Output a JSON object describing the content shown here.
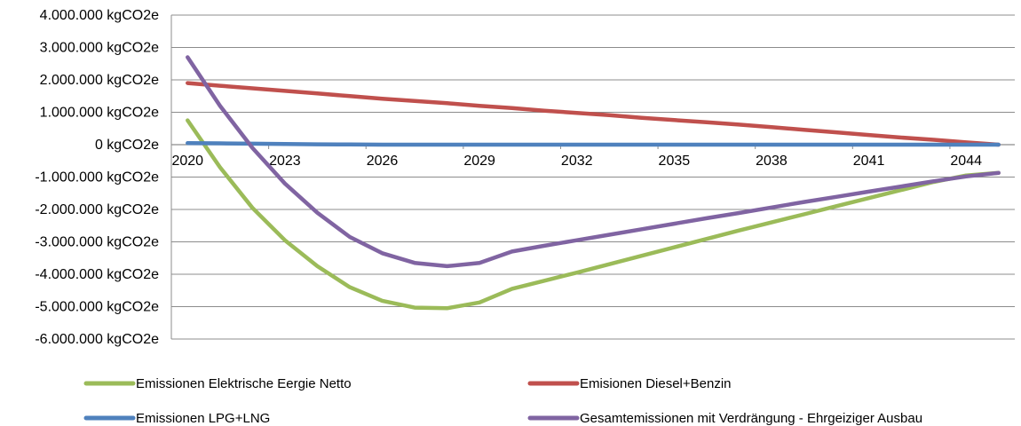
{
  "chart_data": {
    "type": "line",
    "title": "",
    "xlabel": "",
    "ylabel": "",
    "ylim": [
      -6000000,
      4000000
    ],
    "ytick_values": [
      4000000,
      3000000,
      2000000,
      1000000,
      0,
      -1000000,
      -2000000,
      -3000000,
      -4000000,
      -5000000,
      -6000000
    ],
    "ytick_labels": [
      "4.000.000 kgCO2e",
      "3.000.000 kgCO2e",
      "2.000.000 kgCO2e",
      "1.000.000 kgCO2e",
      "0 kgCO2e",
      "-1.000.000 kgCO2e",
      "-2.000.000 kgCO2e",
      "-3.000.000 kgCO2e",
      "-4.000.000 kgCO2e",
      "-5.000.000 kgCO2e",
      "-6.000.000 kgCO2e"
    ],
    "xtick_labels": [
      "2020",
      "2023",
      "2026",
      "2029",
      "2032",
      "2035",
      "2038",
      "2041",
      "2044"
    ],
    "grid": true,
    "legend_position": "bottom",
    "x": [
      2020,
      2021,
      2022,
      2023,
      2024,
      2025,
      2026,
      2027,
      2028,
      2029,
      2030,
      2031,
      2032,
      2033,
      2034,
      2035,
      2036,
      2037,
      2038,
      2039,
      2040,
      2041,
      2042,
      2043,
      2044,
      2045
    ],
    "series": [
      {
        "name": "Emissionen Elektrische Eergie Netto",
        "color": "#9bbb59",
        "values": [
          750000,
          -700000,
          -1950000,
          -2950000,
          -3750000,
          -4400000,
          -4820000,
          -5030000,
          -5050000,
          -4870000,
          -4450000,
          -4200000,
          -3950000,
          -3690000,
          -3430000,
          -3170000,
          -2910000,
          -2650000,
          -2400000,
          -2150000,
          -1900000,
          -1650000,
          -1400000,
          -1150000,
          -950000,
          -870000
        ]
      },
      {
        "name": "Emisionen Diesel+Benzin",
        "color": "#c0504d",
        "values": [
          1900000,
          1820000,
          1740000,
          1660000,
          1580000,
          1500000,
          1420000,
          1350000,
          1280000,
          1200000,
          1130000,
          1050000,
          980000,
          910000,
          830000,
          760000,
          690000,
          620000,
          540000,
          460000,
          380000,
          300000,
          220000,
          150000,
          70000,
          0
        ]
      },
      {
        "name": "Emissionen LPG+LNG",
        "color": "#4f81bd",
        "values": [
          50000,
          40000,
          30000,
          20000,
          10000,
          5000,
          0,
          0,
          0,
          0,
          0,
          0,
          0,
          0,
          0,
          0,
          0,
          0,
          0,
          0,
          0,
          0,
          0,
          0,
          0,
          0
        ]
      },
      {
        "name": "Gesamtemissionen mit Verdrängung - Ehrgeiziger Ausbau",
        "color": "#8064a2",
        "values": [
          2700000,
          1200000,
          -100000,
          -1200000,
          -2100000,
          -2850000,
          -3350000,
          -3650000,
          -3750000,
          -3650000,
          -3300000,
          -3120000,
          -2950000,
          -2780000,
          -2610000,
          -2440000,
          -2270000,
          -2110000,
          -1940000,
          -1770000,
          -1610000,
          -1450000,
          -1290000,
          -1130000,
          -980000,
          -870000
        ]
      }
    ]
  }
}
